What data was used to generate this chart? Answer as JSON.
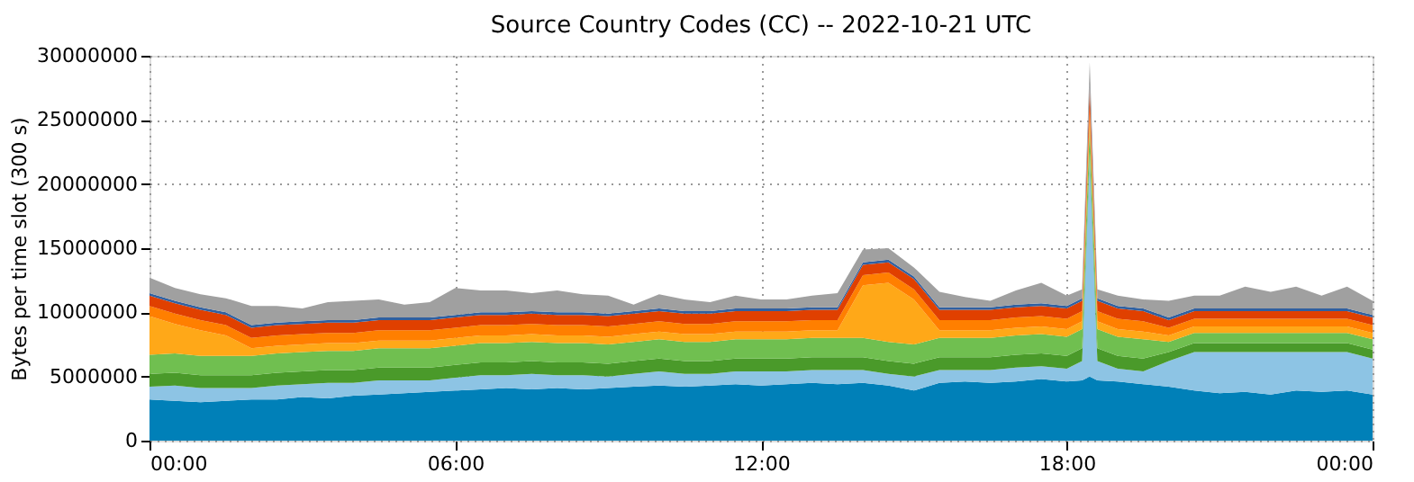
{
  "chart_data": {
    "type": "area",
    "stacked": true,
    "title": "Source Country Codes (CC) -- 2022-10-21 UTC",
    "ylabel": "Bytes per time slot (300 s)",
    "x": [
      0,
      0.5,
      1,
      1.5,
      2,
      2.5,
      3,
      3.5,
      4,
      4.5,
      5,
      5.5,
      6,
      6.5,
      7,
      7.5,
      8,
      8.5,
      9,
      9.5,
      10,
      10.5,
      11,
      11.5,
      12,
      12.5,
      13,
      13.5,
      14,
      14.5,
      15,
      15.5,
      16,
      16.5,
      17,
      17.5,
      18,
      18.3,
      18.45,
      18.6,
      19,
      19.5,
      20,
      20.5,
      21,
      21.5,
      22,
      22.5,
      23,
      23.5,
      24
    ],
    "series": [
      {
        "color": "#0080b8",
        "values": [
          3200000.0,
          3100000.0,
          3000000.0,
          3100000.0,
          3200000.0,
          3200000.0,
          3400000.0,
          3300000.0,
          3500000.0,
          3600000.0,
          3700000.0,
          3800000.0,
          3900000.0,
          4000000.0,
          4100000.0,
          4000000.0,
          4100000.0,
          4000000.0,
          4100000.0,
          4200000.0,
          4300000.0,
          4200000.0,
          4300000.0,
          4400000.0,
          4300000.0,
          4400000.0,
          4500000.0,
          4400000.0,
          4500000.0,
          4300000.0,
          3900000.0,
          4500000.0,
          4600000.0,
          4500000.0,
          4600000.0,
          4800000.0,
          4600000.0,
          4700000.0,
          5000000.0,
          4700000.0,
          4600000.0,
          4400000.0,
          4200000.0,
          3900000.0,
          3700000.0,
          3800000.0,
          3600000.0,
          3900000.0,
          3800000.0,
          3900000.0,
          3600000.0
        ]
      },
      {
        "color": "#8dc4e4",
        "values": [
          1000000.0,
          1200000.0,
          1100000.0,
          1000000.0,
          900000.0,
          1100000.0,
          1000000.0,
          1200000.0,
          1000000.0,
          1100000.0,
          1000000.0,
          900000.0,
          1000000.0,
          1100000.0,
          1000000.0,
          1200000.0,
          1000000.0,
          1100000.0,
          900000.0,
          1000000.0,
          1100000.0,
          1000000.0,
          900000.0,
          1000000.0,
          1100000.0,
          1000000.0,
          1000000.0,
          1100000.0,
          1000000.0,
          900000.0,
          1100000.0,
          1000000.0,
          900000.0,
          1000000.0,
          1100000.0,
          1000000.0,
          1000000.0,
          1500000.0,
          17000000.0,
          1500000.0,
          1000000.0,
          1000000.0,
          2000000.0,
          3000000.0,
          3200000.0,
          3100000.0,
          3300000.0,
          3000000.0,
          3100000.0,
          3000000.0,
          2800000.0
        ]
      },
      {
        "color": "#4a9a2a",
        "values": [
          1000000.0,
          1000000.0,
          1000000.0,
          1000000.0,
          1000000.0,
          1000000.0,
          1000000.0,
          1000000.0,
          1000000.0,
          1000000.0,
          1000000.0,
          1000000.0,
          1000000.0,
          1000000.0,
          1000000.0,
          1000000.0,
          1000000.0,
          1000000.0,
          1000000.0,
          1000000.0,
          1000000.0,
          1000000.0,
          1000000.0,
          1000000.0,
          1000000.0,
          1000000.0,
          1000000.0,
          1000000.0,
          1000000.0,
          1000000.0,
          1000000.0,
          1000000.0,
          1000000.0,
          1000000.0,
          1000000.0,
          1000000.0,
          1000000.0,
          1000000.0,
          500000.0,
          1000000.0,
          1000000.0,
          1000000.0,
          700000.0,
          700000.0,
          700000.0,
          700000.0,
          700000.0,
          700000.0,
          700000.0,
          700000.0,
          700000.0
        ]
      },
      {
        "color": "#70bf50",
        "values": [
          1500000.0,
          1500000.0,
          1500000.0,
          1500000.0,
          1500000.0,
          1500000.0,
          1500000.0,
          1500000.0,
          1500000.0,
          1500000.0,
          1500000.0,
          1500000.0,
          1500000.0,
          1500000.0,
          1500000.0,
          1500000.0,
          1500000.0,
          1500000.0,
          1500000.0,
          1500000.0,
          1500000.0,
          1500000.0,
          1500000.0,
          1500000.0,
          1500000.0,
          1500000.0,
          1500000.0,
          1500000.0,
          1500000.0,
          1500000.0,
          1500000.0,
          1500000.0,
          1500000.0,
          1500000.0,
          1500000.0,
          1500000.0,
          1500000.0,
          1500000.0,
          2000000.0,
          1500000.0,
          1500000.0,
          1500000.0,
          800000.0,
          800000.0,
          800000.0,
          800000.0,
          800000.0,
          800000.0,
          800000.0,
          800000.0,
          800000.0
        ]
      },
      {
        "color": "#ffa818",
        "values": [
          3000000.0,
          2300000.0,
          2000000.0,
          1600000.0,
          600000.0,
          600000.0,
          600000.0,
          600000.0,
          600000.0,
          600000.0,
          600000.0,
          600000.0,
          600000.0,
          600000.0,
          600000.0,
          600000.0,
          600000.0,
          600000.0,
          600000.0,
          600000.0,
          600000.0,
          600000.0,
          600000.0,
          600000.0,
          600000.0,
          600000.0,
          600000.0,
          600000.0,
          4100000.0,
          4600000.0,
          3500000.0,
          600000.0,
          600000.0,
          600000.0,
          600000.0,
          600000.0,
          600000.0,
          600000.0,
          500000.0,
          600000.0,
          600000.0,
          600000.0,
          500000.0,
          500000.0,
          500000.0,
          500000.0,
          500000.0,
          500000.0,
          500000.0,
          500000.0,
          500000.0
        ]
      },
      {
        "color": "#ff7f00",
        "values": [
          800000.0,
          800000.0,
          800000.0,
          800000.0,
          800000.0,
          800000.0,
          800000.0,
          800000.0,
          800000.0,
          800000.0,
          800000.0,
          800000.0,
          800000.0,
          800000.0,
          800000.0,
          800000.0,
          800000.0,
          800000.0,
          800000.0,
          800000.0,
          800000.0,
          800000.0,
          800000.0,
          800000.0,
          800000.0,
          800000.0,
          800000.0,
          800000.0,
          800000.0,
          800000.0,
          800000.0,
          800000.0,
          800000.0,
          800000.0,
          800000.0,
          800000.0,
          800000.0,
          800000.0,
          1000000.0,
          800000.0,
          800000.0,
          800000.0,
          600000.0,
          600000.0,
          600000.0,
          600000.0,
          600000.0,
          600000.0,
          600000.0,
          600000.0,
          600000.0
        ]
      },
      {
        "color": "#e04000",
        "values": [
          800000.0,
          800000.0,
          800000.0,
          800000.0,
          800000.0,
          800000.0,
          800000.0,
          800000.0,
          800000.0,
          800000.0,
          800000.0,
          800000.0,
          800000.0,
          800000.0,
          800000.0,
          800000.0,
          800000.0,
          800000.0,
          800000.0,
          800000.0,
          800000.0,
          800000.0,
          800000.0,
          800000.0,
          800000.0,
          800000.0,
          800000.0,
          800000.0,
          800000.0,
          800000.0,
          800000.0,
          800000.0,
          800000.0,
          800000.0,
          800000.0,
          800000.0,
          800000.0,
          800000.0,
          1500000.0,
          800000.0,
          800000.0,
          800000.0,
          600000.0,
          600000.0,
          600000.0,
          600000.0,
          600000.0,
          600000.0,
          600000.0,
          600000.0,
          600000.0
        ]
      },
      {
        "color": "#3060a0",
        "values": [
          200000.0,
          200000.0,
          200000.0,
          200000.0,
          200000.0,
          200000.0,
          200000.0,
          200000.0,
          200000.0,
          200000.0,
          200000.0,
          200000.0,
          200000.0,
          200000.0,
          200000.0,
          200000.0,
          200000.0,
          200000.0,
          200000.0,
          200000.0,
          200000.0,
          200000.0,
          200000.0,
          200000.0,
          200000.0,
          200000.0,
          200000.0,
          200000.0,
          200000.0,
          200000.0,
          200000.0,
          200000.0,
          200000.0,
          200000.0,
          200000.0,
          200000.0,
          200000.0,
          200000.0,
          300000.0,
          200000.0,
          200000.0,
          200000.0,
          200000.0,
          200000.0,
          200000.0,
          200000.0,
          200000.0,
          200000.0,
          200000.0,
          200000.0,
          200000.0
        ]
      },
      {
        "color": "#a0a0a0",
        "values": [
          1200000.0,
          1000000.0,
          1000000.0,
          1100000.0,
          1500000.0,
          1300000.0,
          1000000.0,
          1400000.0,
          1500000.0,
          1400000.0,
          1000000.0,
          1200000.0,
          2100000.0,
          1700000.0,
          1700000.0,
          1400000.0,
          1700000.0,
          1400000.0,
          1400000.0,
          500000.0,
          1100000.0,
          900000.0,
          700000.0,
          1000000.0,
          700000.0,
          700000.0,
          900000.0,
          1100000.0,
          1000000.0,
          900000.0,
          700000.0,
          1200000.0,
          800000.0,
          500000.0,
          1100000.0,
          1600000.0,
          800000.0,
          700000.0,
          1700000.0,
          700000.0,
          800000.0,
          700000.0,
          1300000.0,
          1000000.0,
          1000000.0,
          1700000.0,
          1300000.0,
          1700000.0,
          1000000.0,
          1700000.0,
          1100000.0
        ]
      }
    ],
    "xlim": [
      0,
      24
    ],
    "xticks": [
      {
        "value": 0,
        "label": "00:00"
      },
      {
        "value": 6,
        "label": "06:00"
      },
      {
        "value": 12,
        "label": "12:00"
      },
      {
        "value": 18,
        "label": "18:00"
      },
      {
        "value": 24,
        "label": "00:00"
      }
    ],
    "ylim": [
      0,
      30000000
    ],
    "yticks": [
      0,
      5000000,
      10000000,
      15000000,
      20000000,
      25000000,
      30000000
    ],
    "grid": true,
    "legend": false
  }
}
